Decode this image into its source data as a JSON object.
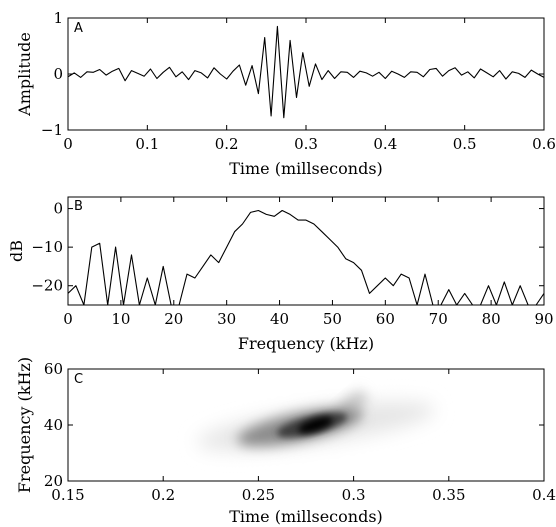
{
  "chart_data": [
    {
      "type": "line",
      "panel_letter": "A",
      "xlabel": "Time (millseconds)",
      "ylabel": "Amplitude",
      "xlim": [
        0,
        0.6
      ],
      "ylim": [
        -1,
        1
      ],
      "x_ticks": [
        0,
        0.1,
        0.2,
        0.3,
        0.4,
        0.5,
        0.6
      ],
      "x_tick_labels": [
        "0",
        "0.1",
        "0.2",
        "0.3",
        "0.4",
        "0.5",
        "0.6"
      ],
      "y_ticks": [
        -1,
        0,
        1
      ],
      "y_tick_labels": [
        "−1",
        "0",
        "1"
      ],
      "x": [
        0.0,
        0.008,
        0.016,
        0.024,
        0.032,
        0.04,
        0.048,
        0.056,
        0.064,
        0.072,
        0.08,
        0.088,
        0.096,
        0.104,
        0.112,
        0.12,
        0.128,
        0.136,
        0.144,
        0.152,
        0.16,
        0.168,
        0.176,
        0.184,
        0.192,
        0.2,
        0.208,
        0.216,
        0.224,
        0.232,
        0.24,
        0.248,
        0.256,
        0.264,
        0.272,
        0.28,
        0.288,
        0.296,
        0.304,
        0.312,
        0.32,
        0.328,
        0.336,
        0.344,
        0.352,
        0.36,
        0.368,
        0.376,
        0.384,
        0.392,
        0.4,
        0.408,
        0.416,
        0.424,
        0.432,
        0.44,
        0.448,
        0.456,
        0.464,
        0.472,
        0.48,
        0.488,
        0.496,
        0.504,
        0.512,
        0.52,
        0.528,
        0.536,
        0.544,
        0.552,
        0.56,
        0.568,
        0.576,
        0.584,
        0.592,
        0.6
      ],
      "y": [
        -0.05,
        0.02,
        -0.06,
        0.04,
        0.03,
        0.08,
        -0.02,
        0.05,
        0.1,
        -0.12,
        0.06,
        0.01,
        -0.04,
        0.09,
        -0.08,
        0.03,
        0.12,
        -0.05,
        0.04,
        -0.1,
        0.06,
        0.02,
        -0.07,
        0.11,
        0.0,
        -0.09,
        0.05,
        0.16,
        -0.2,
        0.15,
        -0.35,
        0.65,
        -0.75,
        0.85,
        -0.78,
        0.6,
        -0.42,
        0.38,
        -0.22,
        0.18,
        -0.1,
        0.06,
        -0.08,
        0.04,
        0.03,
        -0.06,
        0.05,
        0.02,
        -0.04,
        0.03,
        -0.08,
        0.05,
        0.0,
        -0.06,
        0.04,
        0.03,
        -0.05,
        0.08,
        0.1,
        -0.04,
        0.06,
        0.11,
        -0.02,
        0.04,
        -0.07,
        0.09,
        0.02,
        -0.05,
        0.06,
        -0.09,
        0.04,
        0.01,
        -0.06,
        0.07,
        0.0,
        -0.06
      ]
    },
    {
      "type": "line",
      "panel_letter": "B",
      "xlabel": "Frequency (kHz)",
      "ylabel": "dB",
      "xlim": [
        0,
        90
      ],
      "ylim": [
        -25,
        3
      ],
      "x_ticks": [
        0,
        10,
        20,
        30,
        40,
        50,
        60,
        70,
        80,
        90
      ],
      "x_tick_labels": [
        "0",
        "10",
        "20",
        "30",
        "40",
        "50",
        "60",
        "70",
        "80",
        "90"
      ],
      "y_ticks": [
        -20,
        -10,
        0
      ],
      "y_tick_labels": [
        "−20",
        "−10",
        "0"
      ],
      "x": [
        0,
        1.5,
        3,
        4.5,
        6,
        7.5,
        9,
        10.5,
        12,
        13.5,
        15,
        16.5,
        18,
        19.5,
        21,
        22.5,
        24,
        25.5,
        27,
        28.5,
        30,
        31.5,
        33,
        34.5,
        36,
        37.5,
        39,
        40.5,
        42,
        43.5,
        45,
        46.5,
        48,
        49.5,
        51,
        52.5,
        54,
        55.5,
        57,
        58.5,
        60,
        61.5,
        63,
        64.5,
        66,
        67.5,
        69,
        70.5,
        72,
        73.5,
        75,
        76.5,
        78,
        79.5,
        81,
        82.5,
        84,
        85.5,
        87,
        88.5,
        90
      ],
      "y": [
        -22,
        -20,
        -25,
        -10,
        -9,
        -25,
        -10,
        -25,
        -12,
        -25,
        -18,
        -25,
        -15,
        -25,
        -25,
        -17,
        -18,
        -15,
        -12,
        -14,
        -10,
        -6,
        -4,
        -1,
        -0.5,
        -1.5,
        -2,
        -0.5,
        -1.5,
        -3,
        -3,
        -4,
        -6,
        -8,
        -10,
        -13,
        -14,
        -16,
        -22,
        -20,
        -18,
        -20,
        -17,
        -18,
        -25,
        -17,
        -25,
        -25,
        -21,
        -25,
        -22,
        -25,
        -25,
        -20,
        -25,
        -19,
        -25,
        -20,
        -25,
        -25,
        -22
      ]
    },
    {
      "type": "heatmap",
      "panel_letter": "C",
      "xlabel": "Time (millseconds)",
      "ylabel": "Frequency (kHz)",
      "xlim": [
        0.15,
        0.4
      ],
      "ylim": [
        20,
        60
      ],
      "x_ticks": [
        0.15,
        0.2,
        0.25,
        0.3,
        0.35,
        0.4
      ],
      "x_tick_labels": [
        "0.15",
        "0.2",
        "0.25",
        "0.3",
        "0.35",
        "0.4"
      ],
      "y_ticks": [
        20,
        40,
        60
      ],
      "y_tick_labels": [
        "20",
        "40",
        "60"
      ],
      "colormap": "grayscale (white = low, black = high)",
      "peak": {
        "time": 0.28,
        "frequency": 40
      }
    }
  ]
}
